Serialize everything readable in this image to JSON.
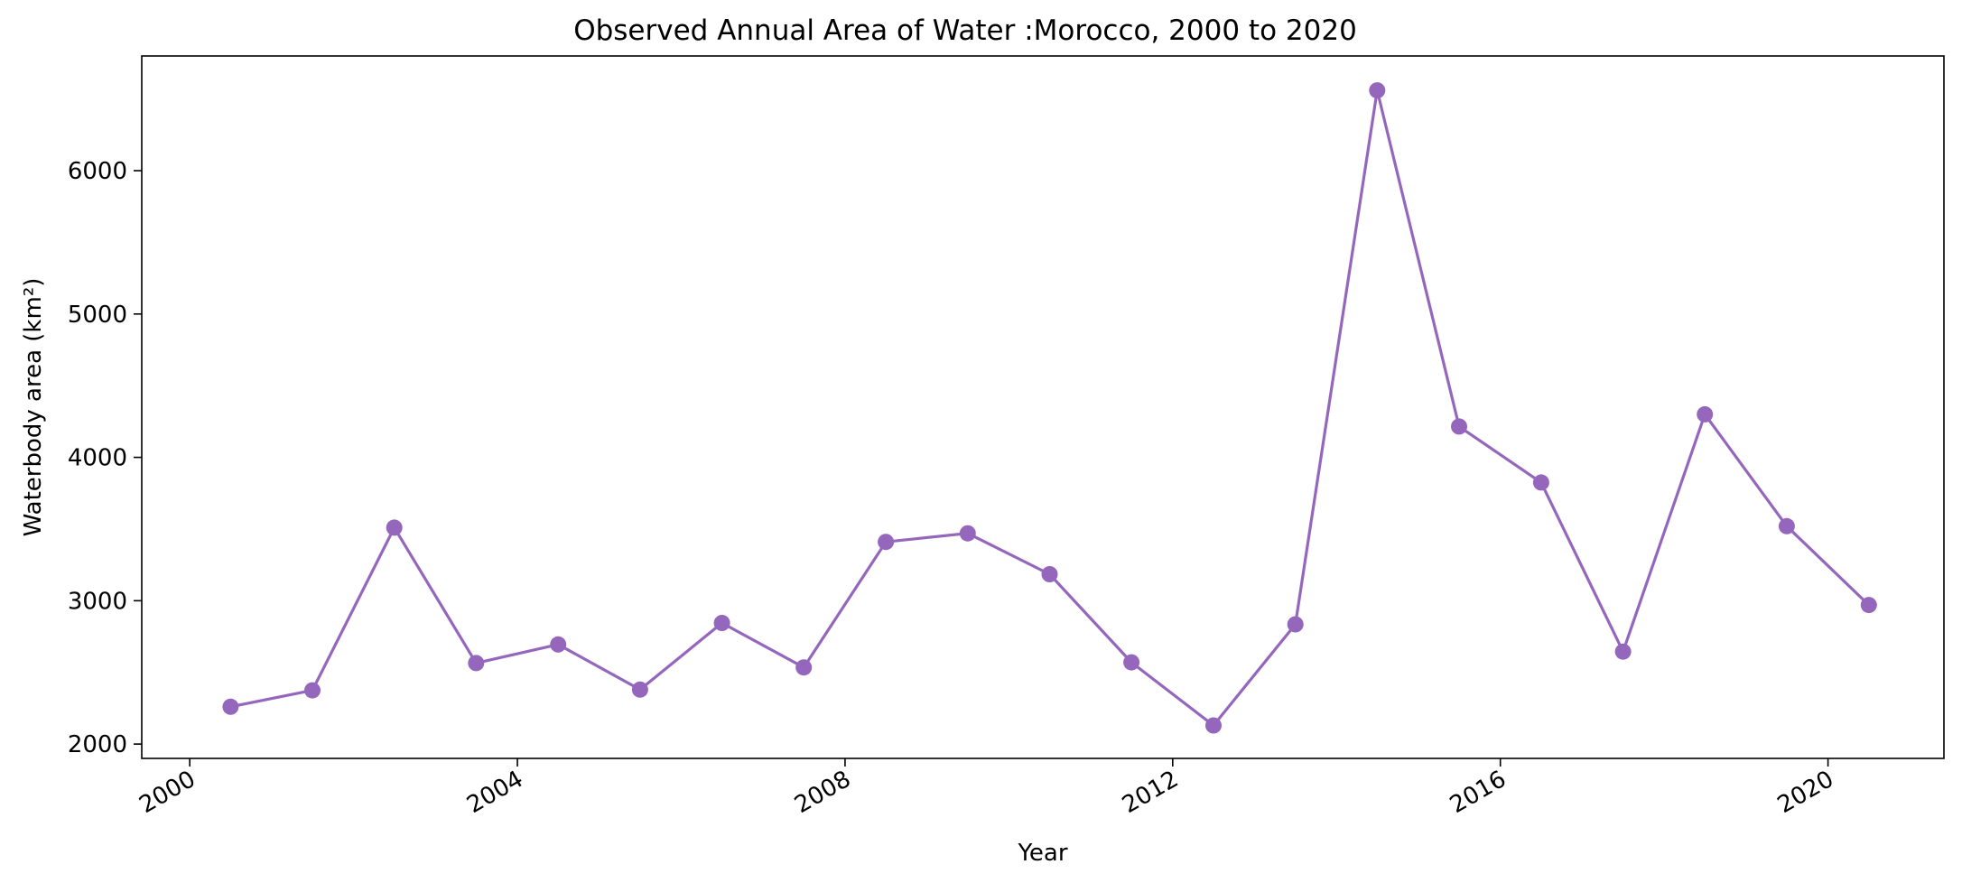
{
  "chart_data": {
    "type": "line",
    "title": "Observed Annual Area of Water :Morocco, 2000 to 2020",
    "xlabel": "Year",
    "ylabel": "Waterbody area (km²)",
    "x_date_range": [
      "1999-06-01",
      "2021-06-01"
    ],
    "ylim": [
      1900,
      6800
    ],
    "x_ticks": [
      "2000",
      "2004",
      "2008",
      "2012",
      "2016",
      "2020"
    ],
    "y_ticks": [
      2000,
      3000,
      4000,
      5000,
      6000
    ],
    "grid": false,
    "legend": "none",
    "series": [
      {
        "color": "#9467bd",
        "marker": "circle",
        "x": [
          "2000-07-01",
          "2001-07-01",
          "2002-07-01",
          "2003-07-01",
          "2004-07-01",
          "2005-07-01",
          "2006-07-01",
          "2007-07-01",
          "2008-07-01",
          "2009-07-01",
          "2010-07-01",
          "2011-07-01",
          "2012-07-01",
          "2013-07-01",
          "2014-07-01",
          "2015-07-01",
          "2016-07-01",
          "2017-07-01",
          "2018-07-01",
          "2019-07-01",
          "2020-07-01"
        ],
        "values": [
          2260,
          2375,
          3510,
          2565,
          2695,
          2380,
          2845,
          2535,
          3410,
          3470,
          3185,
          2570,
          2130,
          2835,
          6560,
          4215,
          3825,
          2645,
          4300,
          3520,
          2970
        ]
      }
    ]
  }
}
